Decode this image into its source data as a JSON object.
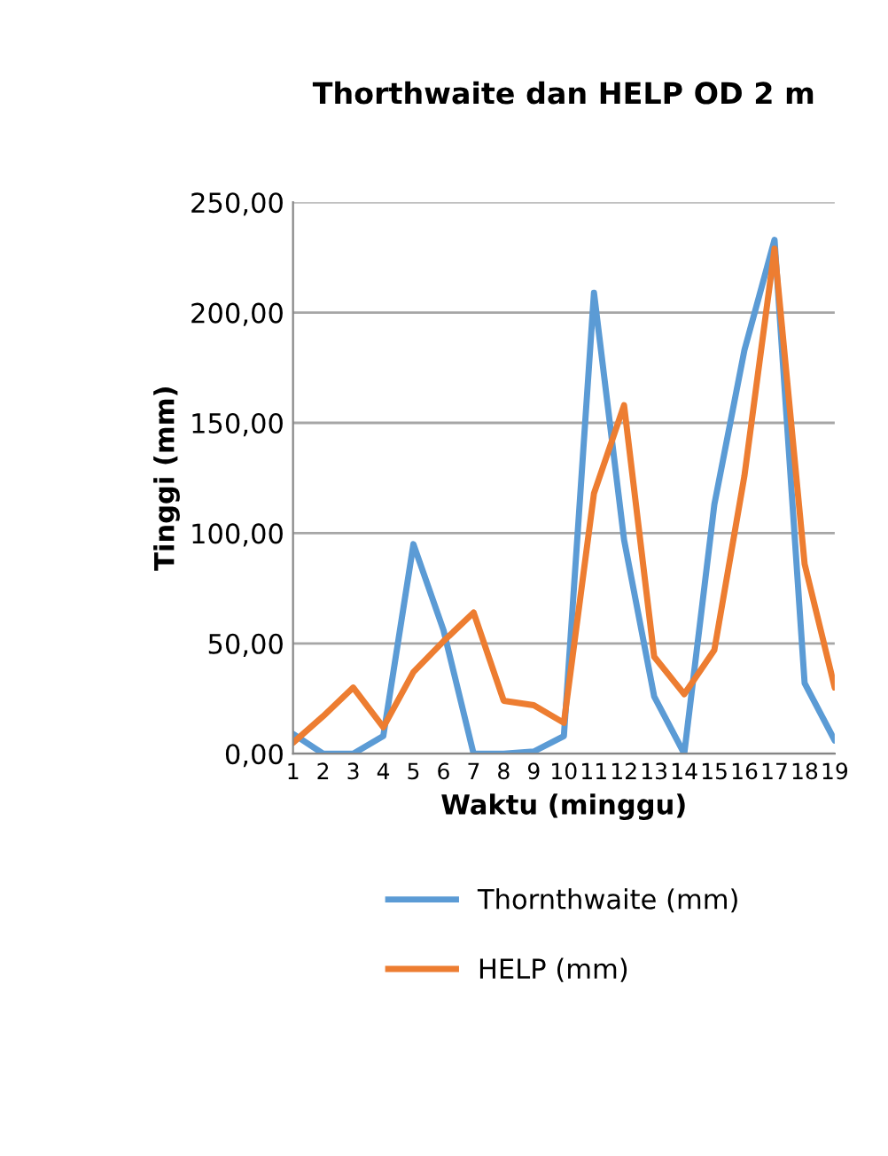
{
  "chart_data": {
    "type": "line",
    "title": "Thorthwaite dan HELP OD 2 m",
    "xlabel": "Waktu (minggu)",
    "ylabel": "Tinggi (mm)",
    "categories": [
      "1",
      "2",
      "3",
      "4",
      "5",
      "6",
      "7",
      "8",
      "9",
      "10",
      "11",
      "12",
      "13",
      "14",
      "15",
      "16",
      "17",
      "18",
      "19"
    ],
    "series": [
      {
        "name": "Thornthwaite (mm)",
        "color": "#5b9bd5",
        "values": [
          9,
          0,
          0,
          8,
          95,
          56,
          0,
          0,
          1,
          8,
          209,
          97,
          26,
          0,
          113,
          183,
          233,
          32,
          6
        ]
      },
      {
        "name": "HELP (mm)",
        "color": "#ed7d31",
        "values": [
          5,
          17,
          30,
          12,
          37,
          51,
          64,
          24,
          22,
          14,
          118,
          158,
          44,
          27,
          47,
          126,
          229,
          86,
          30
        ]
      }
    ],
    "ylim": [
      0,
      250
    ],
    "yticks": [
      {
        "value": 0,
        "label": "0,00"
      },
      {
        "value": 50,
        "label": "50,00"
      },
      {
        "value": 100,
        "label": "100,00"
      },
      {
        "value": 150,
        "label": "150,00"
      },
      {
        "value": 200,
        "label": "200,00"
      },
      {
        "value": 250,
        "label": "250,00"
      }
    ],
    "grid": "y",
    "legend": "bottom",
    "marker": "none",
    "line_style": "solid"
  }
}
